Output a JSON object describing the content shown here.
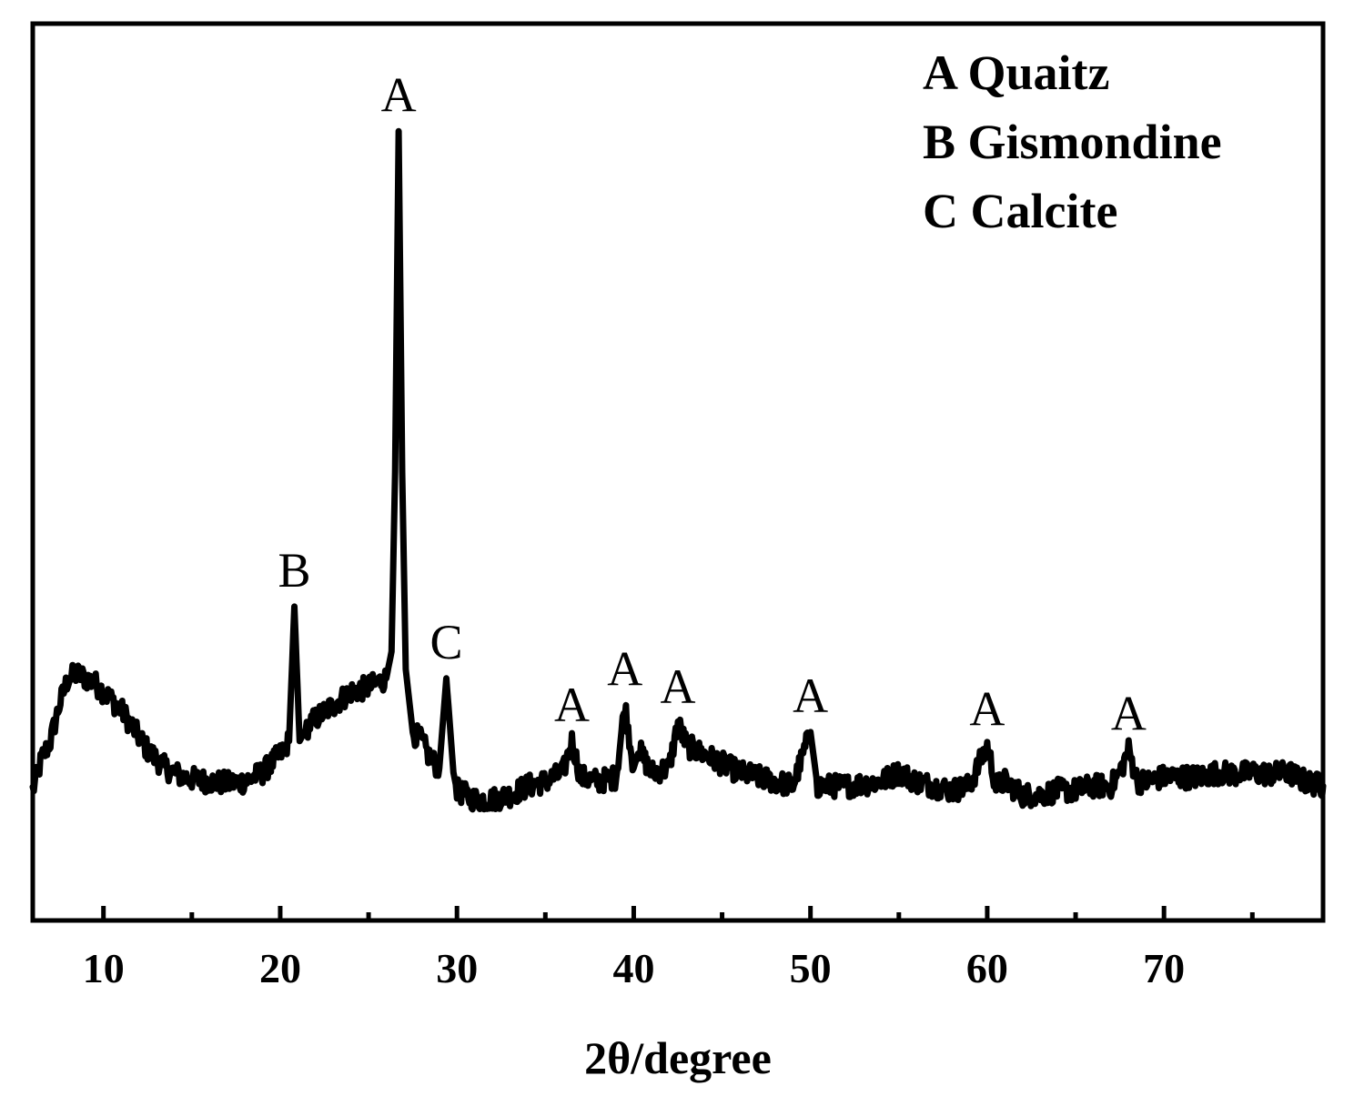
{
  "chart_data": {
    "type": "line",
    "title": "",
    "xlabel": "2θ/degree",
    "ylabel": "",
    "xlim": [
      6,
      79
    ],
    "ylim": [
      0,
      100
    ],
    "x_ticks": [
      10,
      20,
      30,
      40,
      50,
      60,
      70
    ],
    "x_tick_labels": [
      "10",
      "20",
      "30",
      "40",
      "50",
      "60",
      "70"
    ],
    "x_minor_ticks": [
      15,
      25,
      35,
      45,
      55,
      65,
      75
    ],
    "grid": false,
    "legend_position": "top-right",
    "legend": [
      {
        "key": "A",
        "label": "A Quaitz"
      },
      {
        "key": "B",
        "label": "B Gismondine"
      },
      {
        "key": "C",
        "label": "C Calcite"
      }
    ],
    "series": [
      {
        "color": "#000000",
        "points": [
          [
            6.0,
            14.5
          ],
          [
            6.5,
            18
          ],
          [
            7.0,
            20
          ],
          [
            7.5,
            24
          ],
          [
            8.0,
            27
          ],
          [
            8.5,
            27.5
          ],
          [
            9.0,
            27
          ],
          [
            9.5,
            26.5
          ],
          [
            10.0,
            25.5
          ],
          [
            10.5,
            24.5
          ],
          [
            11.0,
            23.5
          ],
          [
            11.5,
            22
          ],
          [
            12.0,
            20.5
          ],
          [
            12.5,
            19
          ],
          [
            13.0,
            18
          ],
          [
            13.5,
            17
          ],
          [
            14.0,
            16.5
          ],
          [
            14.5,
            16
          ],
          [
            15.0,
            15.8
          ],
          [
            16.0,
            15.5
          ],
          [
            17.0,
            15.3
          ],
          [
            18.0,
            15.5
          ],
          [
            19.0,
            16.5
          ],
          [
            20.0,
            18.5
          ],
          [
            20.5,
            20
          ],
          [
            20.8,
            35
          ],
          [
            21.1,
            20
          ],
          [
            21.5,
            21.5
          ],
          [
            22.0,
            22.5
          ],
          [
            23.0,
            24
          ],
          [
            24.0,
            25.5
          ],
          [
            25.0,
            26
          ],
          [
            26.0,
            27
          ],
          [
            26.3,
            30
          ],
          [
            26.5,
            50
          ],
          [
            26.7,
            88
          ],
          [
            26.9,
            50
          ],
          [
            27.1,
            28
          ],
          [
            27.5,
            21
          ],
          [
            28.0,
            20
          ],
          [
            28.5,
            18
          ],
          [
            29.0,
            17
          ],
          [
            29.4,
            27
          ],
          [
            29.8,
            16.5
          ],
          [
            30.0,
            14.5
          ],
          [
            31.0,
            13.5
          ],
          [
            32.0,
            13.5
          ],
          [
            33.0,
            14
          ],
          [
            34.0,
            15
          ],
          [
            35.0,
            15.5
          ],
          [
            36.0,
            16.5
          ],
          [
            36.5,
            20
          ],
          [
            37.0,
            16
          ],
          [
            38.0,
            15.5
          ],
          [
            39.0,
            16
          ],
          [
            39.5,
            24
          ],
          [
            40.0,
            17
          ],
          [
            40.3,
            19
          ],
          [
            41.0,
            16.5
          ],
          [
            42.0,
            17
          ],
          [
            42.5,
            22
          ],
          [
            43.0,
            19.5
          ],
          [
            44.0,
            18.5
          ],
          [
            45.0,
            17.5
          ],
          [
            46.0,
            16.5
          ],
          [
            47.0,
            16
          ],
          [
            48.0,
            15.5
          ],
          [
            49.0,
            15
          ],
          [
            50.0,
            21
          ],
          [
            50.4,
            15
          ],
          [
            52.0,
            15
          ],
          [
            54.0,
            15.5
          ],
          [
            55.0,
            16.5
          ],
          [
            56.0,
            15.5
          ],
          [
            57.0,
            15
          ],
          [
            58.0,
            14.5
          ],
          [
            59.0,
            15
          ],
          [
            60.0,
            19.5
          ],
          [
            60.5,
            15
          ],
          [
            61.0,
            15.5
          ],
          [
            62.0,
            14
          ],
          [
            63.0,
            14
          ],
          [
            64.0,
            14.5
          ],
          [
            65.0,
            14.5
          ],
          [
            66.0,
            15
          ],
          [
            67.0,
            15
          ],
          [
            67.5,
            16.5
          ],
          [
            68.0,
            19
          ],
          [
            68.5,
            15.5
          ],
          [
            69.0,
            15.5
          ],
          [
            70.0,
            16
          ],
          [
            71.0,
            16
          ],
          [
            72.0,
            16
          ],
          [
            73.0,
            16.5
          ],
          [
            74.0,
            16.3
          ],
          [
            75.0,
            16.5
          ],
          [
            76.0,
            16.3
          ],
          [
            77.0,
            16.5
          ],
          [
            78.0,
            15.5
          ],
          [
            79.0,
            15
          ]
        ]
      }
    ],
    "annotations": [
      {
        "text": "A",
        "x": 26.7,
        "y": 88
      },
      {
        "text": "B",
        "x": 20.8,
        "y": 35
      },
      {
        "text": "C",
        "x": 29.4,
        "y": 27
      },
      {
        "text": "A",
        "x": 36.5,
        "y": 20
      },
      {
        "text": "A",
        "x": 39.5,
        "y": 24
      },
      {
        "text": "A",
        "x": 42.5,
        "y": 22
      },
      {
        "text": "A",
        "x": 50.0,
        "y": 21
      },
      {
        "text": "A",
        "x": 60.0,
        "y": 19.5
      },
      {
        "text": "A",
        "x": 68.0,
        "y": 19
      }
    ]
  }
}
